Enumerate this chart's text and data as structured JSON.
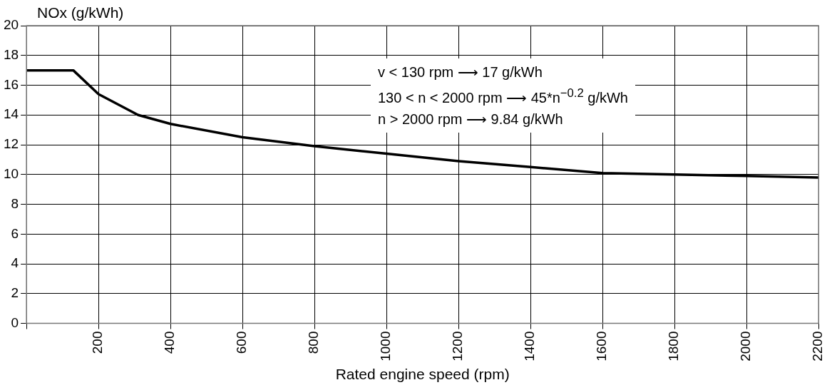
{
  "chart_data": {
    "type": "line",
    "ylabel": "NOx (g/kWh)",
    "xlabel": "Rated engine speed (rpm)",
    "x": [
      0,
      130,
      200,
      310,
      400,
      600,
      800,
      1000,
      1200,
      1400,
      1600,
      1800,
      2000,
      2200
    ],
    "series": [
      {
        "color": "#000000",
        "values": [
          17,
          17,
          15.4,
          14,
          13.4,
          12.5,
          11.9,
          11.4,
          10.9,
          10.5,
          10.1,
          10,
          9.9,
          9.8
        ]
      }
    ],
    "xlim": [
      0,
      2200
    ],
    "xticks": [
      {
        "value": 0,
        "label": null
      },
      200,
      400,
      600,
      800,
      1000,
      1200,
      1400,
      1600,
      1800,
      2000,
      2200
    ],
    "ylim": [
      0,
      20
    ],
    "yticks": [
      0,
      2,
      4,
      6,
      8,
      10,
      12,
      14,
      16,
      18,
      20
    ],
    "grid": true,
    "line_style": "solid",
    "marker": "none",
    "legend": false,
    "annotations": [
      "v < 130 rpm ⟶ 17 g/kWh",
      "130 < n < 2000 rpm ⟶ 45*n$^{−0.2}$ g/kWh",
      "n > 2000 rpm ⟶ 9.84 g/kWh"
    ]
  }
}
